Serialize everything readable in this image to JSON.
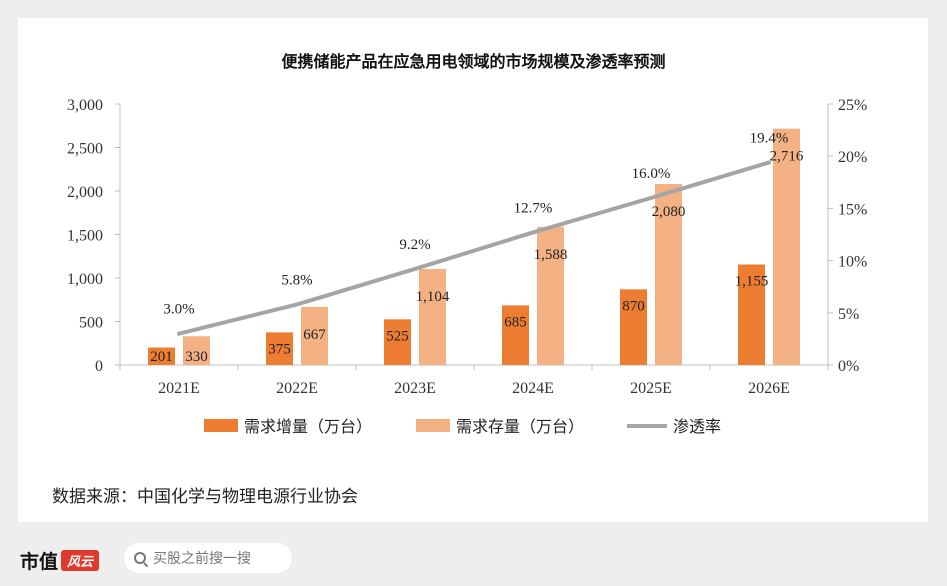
{
  "chart_data": {
    "type": "bar",
    "title": "便携储能产品在应急用电领域的市场规模及渗透率预测",
    "categories": [
      "2021E",
      "2022E",
      "2023E",
      "2024E",
      "2025E",
      "2026E"
    ],
    "series": [
      {
        "name": "需求增量（万台）",
        "type": "bar",
        "axis": "left",
        "color": "#ed7d31",
        "values": [
          201,
          375,
          525,
          685,
          870,
          1155
        ],
        "labels": [
          "201",
          "375",
          "525",
          "685",
          "870",
          "1,155"
        ]
      },
      {
        "name": "需求存量（万台）",
        "type": "bar",
        "axis": "left",
        "color": "#f4b183",
        "values": [
          330,
          667,
          1104,
          1588,
          2080,
          2716
        ],
        "labels": [
          "330",
          "667",
          "1,104",
          "1,588",
          "2,080",
          "2,716"
        ]
      },
      {
        "name": "渗透率",
        "type": "line",
        "axis": "right",
        "color": "#a5a5a5",
        "values": [
          3.0,
          5.8,
          9.2,
          12.7,
          16.0,
          19.4
        ],
        "labels": [
          "3.0%",
          "5.8%",
          "9.2%",
          "12.7%",
          "16.0%",
          "19.4%"
        ]
      }
    ],
    "ylim": [
      0,
      3000
    ],
    "y_ticks": [
      "0",
      "500",
      "1,000",
      "1,500",
      "2,000",
      "2,500",
      "3,000"
    ],
    "y2lim": [
      0,
      25
    ],
    "y2_ticks": [
      "0%",
      "5%",
      "10%",
      "15%",
      "20%",
      "25%"
    ],
    "grid": false,
    "legend_position": "bottom"
  },
  "source": "数据来源：中国化学与物理电源行业协会",
  "footer": {
    "brand": "市值",
    "brand_badge": "风云",
    "search_placeholder": "买股之前搜一搜"
  }
}
